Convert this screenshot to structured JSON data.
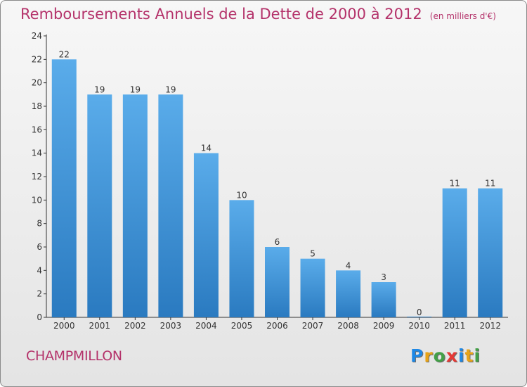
{
  "page": {
    "commune": "CHAMPMILLON",
    "brand": {
      "letters": [
        "P",
        "r",
        "o",
        "x",
        "i",
        "t",
        "i"
      ],
      "colors": [
        "#1e88e5",
        "#e8a317",
        "#43a047",
        "#e53935",
        "#1e88e5",
        "#e8a317",
        "#43a047"
      ]
    }
  },
  "chart_data": {
    "type": "bar",
    "title": "Remboursements Annuels de la Dette de 2000 à 2012",
    "subtitle": "(en milliers d'€)",
    "categories": [
      "2000",
      "2001",
      "2002",
      "2003",
      "2004",
      "2005",
      "2006",
      "2007",
      "2008",
      "2009",
      "2010",
      "2011",
      "2012"
    ],
    "values": [
      22,
      19,
      19,
      19,
      14,
      10,
      6,
      5,
      4,
      3,
      0,
      11,
      11
    ],
    "value_labels": [
      "22",
      "19",
      "19",
      "19",
      "14",
      "10",
      "6",
      "5",
      "4",
      "3",
      "0",
      "11",
      "11"
    ],
    "ylim": [
      0,
      24
    ],
    "yticks": [
      0,
      2,
      4,
      6,
      8,
      10,
      12,
      14,
      16,
      18,
      20,
      22,
      24
    ],
    "ytick_labels": [
      "0",
      "2",
      "4",
      "6",
      "8",
      "10",
      "12",
      "14",
      "16",
      "18",
      "20",
      "22",
      "24"
    ],
    "grid": false,
    "colors": {
      "bar_top": "#5aacea",
      "bar_bottom": "#2a7ac0",
      "text": "#b4326a",
      "axis": "#333333"
    }
  }
}
